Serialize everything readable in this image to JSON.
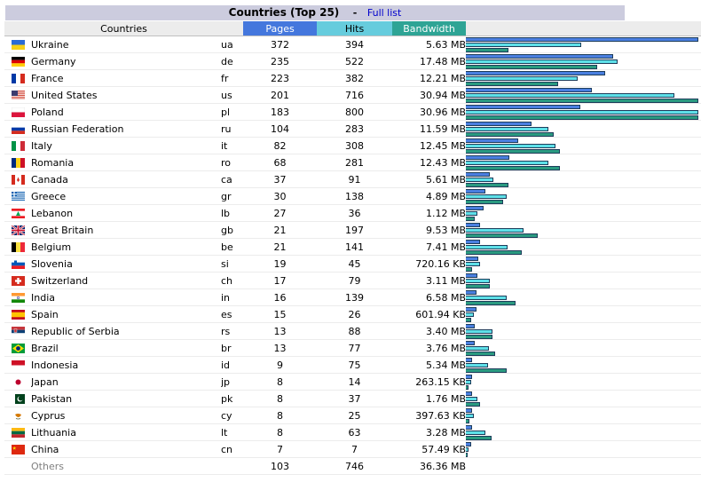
{
  "header": {
    "title": "Countries (Top 25)",
    "separator": "-",
    "full_list_label": "Full list"
  },
  "columns": {
    "countries": "Countries",
    "pages": "Pages",
    "hits": "Hits",
    "bandwidth": "Bandwidth"
  },
  "bars_max": {
    "pages": 372,
    "hits": 800,
    "bandwidth_mb": 30.96
  },
  "rows": [
    {
      "country": "Ukraine",
      "code": "ua",
      "pages": 372,
      "hits": 394,
      "bandwidth": "5.63 MB",
      "bw_mb": 5.63,
      "flag": "ua"
    },
    {
      "country": "Germany",
      "code": "de",
      "pages": 235,
      "hits": 522,
      "bandwidth": "17.48 MB",
      "bw_mb": 17.48,
      "flag": "de"
    },
    {
      "country": "France",
      "code": "fr",
      "pages": 223,
      "hits": 382,
      "bandwidth": "12.21 MB",
      "bw_mb": 12.21,
      "flag": "fr"
    },
    {
      "country": "United States",
      "code": "us",
      "pages": 201,
      "hits": 716,
      "bandwidth": "30.94 MB",
      "bw_mb": 30.94,
      "flag": "us"
    },
    {
      "country": "Poland",
      "code": "pl",
      "pages": 183,
      "hits": 800,
      "bandwidth": "30.96 MB",
      "bw_mb": 30.96,
      "flag": "pl"
    },
    {
      "country": "Russian Federation",
      "code": "ru",
      "pages": 104,
      "hits": 283,
      "bandwidth": "11.59 MB",
      "bw_mb": 11.59,
      "flag": "ru"
    },
    {
      "country": "Italy",
      "code": "it",
      "pages": 82,
      "hits": 308,
      "bandwidth": "12.45 MB",
      "bw_mb": 12.45,
      "flag": "it"
    },
    {
      "country": "Romania",
      "code": "ro",
      "pages": 68,
      "hits": 281,
      "bandwidth": "12.43 MB",
      "bw_mb": 12.43,
      "flag": "ro"
    },
    {
      "country": "Canada",
      "code": "ca",
      "pages": 37,
      "hits": 91,
      "bandwidth": "5.61 MB",
      "bw_mb": 5.61,
      "flag": "ca"
    },
    {
      "country": "Greece",
      "code": "gr",
      "pages": 30,
      "hits": 138,
      "bandwidth": "4.89 MB",
      "bw_mb": 4.89,
      "flag": "gr"
    },
    {
      "country": "Lebanon",
      "code": "lb",
      "pages": 27,
      "hits": 36,
      "bandwidth": "1.12 MB",
      "bw_mb": 1.12,
      "flag": "lb"
    },
    {
      "country": "Great Britain",
      "code": "gb",
      "pages": 21,
      "hits": 197,
      "bandwidth": "9.53 MB",
      "bw_mb": 9.53,
      "flag": "gb"
    },
    {
      "country": "Belgium",
      "code": "be",
      "pages": 21,
      "hits": 141,
      "bandwidth": "7.41 MB",
      "bw_mb": 7.41,
      "flag": "be"
    },
    {
      "country": "Slovenia",
      "code": "si",
      "pages": 19,
      "hits": 45,
      "bandwidth": "720.16 KB",
      "bw_mb": 0.7,
      "flag": "si"
    },
    {
      "country": "Switzerland",
      "code": "ch",
      "pages": 17,
      "hits": 79,
      "bandwidth": "3.11 MB",
      "bw_mb": 3.11,
      "flag": "ch"
    },
    {
      "country": "India",
      "code": "in",
      "pages": 16,
      "hits": 139,
      "bandwidth": "6.58 MB",
      "bw_mb": 6.58,
      "flag": "in"
    },
    {
      "country": "Spain",
      "code": "es",
      "pages": 15,
      "hits": 26,
      "bandwidth": "601.94 KB",
      "bw_mb": 0.59,
      "flag": "es"
    },
    {
      "country": "Republic of Serbia",
      "code": "rs",
      "pages": 13,
      "hits": 88,
      "bandwidth": "3.40 MB",
      "bw_mb": 3.4,
      "flag": "rs"
    },
    {
      "country": "Brazil",
      "code": "br",
      "pages": 13,
      "hits": 77,
      "bandwidth": "3.76 MB",
      "bw_mb": 3.76,
      "flag": "br"
    },
    {
      "country": "Indonesia",
      "code": "id",
      "pages": 9,
      "hits": 75,
      "bandwidth": "5.34 MB",
      "bw_mb": 5.34,
      "flag": "id"
    },
    {
      "country": "Japan",
      "code": "jp",
      "pages": 8,
      "hits": 14,
      "bandwidth": "263.15 KB",
      "bw_mb": 0.26,
      "flag": "jp"
    },
    {
      "country": "Pakistan",
      "code": "pk",
      "pages": 8,
      "hits": 37,
      "bandwidth": "1.76 MB",
      "bw_mb": 1.76,
      "flag": "pk"
    },
    {
      "country": "Cyprus",
      "code": "cy",
      "pages": 8,
      "hits": 25,
      "bandwidth": "397.63 KB",
      "bw_mb": 0.39,
      "flag": "cy"
    },
    {
      "country": "Lithuania",
      "code": "lt",
      "pages": 8,
      "hits": 63,
      "bandwidth": "3.28 MB",
      "bw_mb": 3.28,
      "flag": "lt"
    },
    {
      "country": "China",
      "code": "cn",
      "pages": 7,
      "hits": 7,
      "bandwidth": "57.49 KB",
      "bw_mb": 0.06,
      "flag": "cn"
    }
  ],
  "others": {
    "label": "Others",
    "pages": 103,
    "hits": 746,
    "bandwidth": "36.36 MB"
  }
}
